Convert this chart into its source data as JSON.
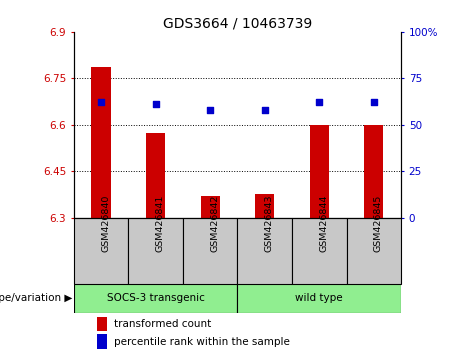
{
  "title": "GDS3664 / 10463739",
  "samples": [
    "GSM426840",
    "GSM426841",
    "GSM426842",
    "GSM426843",
    "GSM426844",
    "GSM426845"
  ],
  "red_values": [
    6.785,
    6.575,
    6.37,
    6.375,
    6.6,
    6.6
  ],
  "blue_percentiles": [
    62,
    61,
    58,
    58,
    62,
    62
  ],
  "ylim_left": [
    6.3,
    6.9
  ],
  "ylim_right": [
    0,
    100
  ],
  "yticks_left": [
    6.3,
    6.45,
    6.6,
    6.75,
    6.9
  ],
  "yticks_right": [
    0,
    25,
    50,
    75,
    100
  ],
  "ytick_labels_left": [
    "6.3",
    "6.45",
    "6.6",
    "6.75",
    "6.9"
  ],
  "ytick_labels_right": [
    "0",
    "25",
    "50",
    "75",
    "100%"
  ],
  "group1_label": "SOCS-3 transgenic",
  "group2_label": "wild type",
  "group1_color": "#90EE90",
  "group2_color": "#90EE90",
  "bar_color": "#CC0000",
  "dot_color": "#0000CC",
  "background_label": "#C8C8C8",
  "genotype_label": "genotype/variation",
  "legend_red": "transformed count",
  "legend_blue": "percentile rank within the sample",
  "bar_width": 0.35,
  "base_value": 6.3,
  "dotted_grid_values": [
    6.45,
    6.6,
    6.75
  ],
  "title_fontsize": 10,
  "tick_fontsize": 7.5,
  "label_fontsize": 7.5
}
